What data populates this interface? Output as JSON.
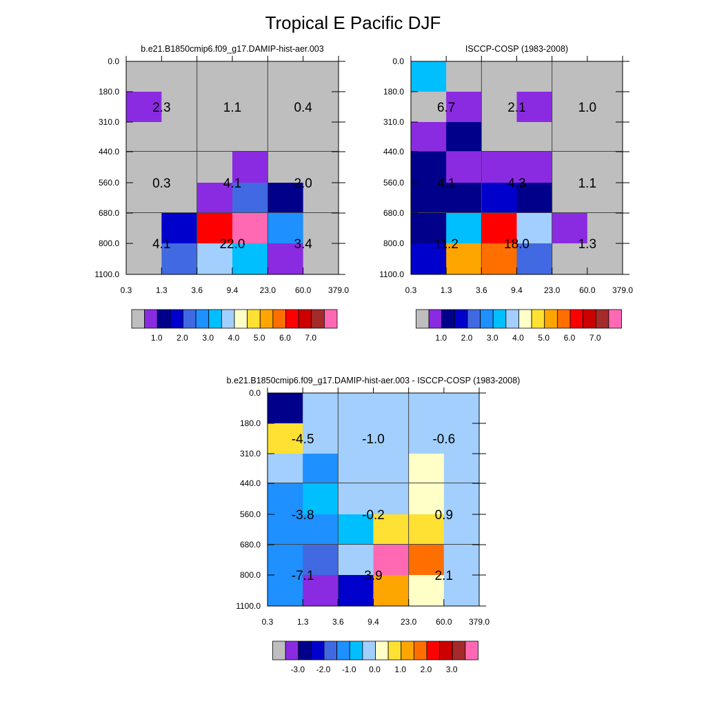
{
  "figure": {
    "title": "Tropical E Pacific DJF"
  },
  "chart_data": [
    {
      "type": "heatmap",
      "title": "b.e21.B1850cmip6.f09_g17.DAMIP-hist-aer.003",
      "x_ticks": [
        "0.3",
        "1.3",
        "3.6",
        "9.4",
        "23.0",
        "60.0",
        "379.0"
      ],
      "y_ticks": [
        "0.0",
        "180.0",
        "310.0",
        "440.0",
        "560.0",
        "680.0",
        "800.0",
        "1100.0"
      ],
      "cells": [
        [
          "gray",
          "gray",
          "gray",
          "gray",
          "gray",
          "gray"
        ],
        [
          "purple",
          "gray",
          "gray",
          "gray",
          "gray",
          "gray"
        ],
        [
          "gray",
          "gray",
          "gray",
          "gray",
          "gray",
          "gray"
        ],
        [
          "gray",
          "gray",
          "gray",
          "purple",
          "gray",
          "gray"
        ],
        [
          "gray",
          "gray",
          "purple",
          "royalblue",
          "navy",
          "gray"
        ],
        [
          "gray",
          "mediumblue",
          "red",
          "pink",
          "dodgerblue",
          "gray"
        ],
        [
          "gray",
          "royalblue",
          "lightblue",
          "deepskyblue",
          "purple",
          "gray"
        ]
      ],
      "box_values": [
        [
          "2.3",
          "1.1",
          "0.4"
        ],
        [
          "0.3",
          "4.1",
          "2.0"
        ],
        [
          "4.1",
          "22.0",
          "3.4"
        ]
      ],
      "colorbar": {
        "labels": [
          "1.0",
          "2.0",
          "3.0",
          "4.0",
          "5.0",
          "6.0",
          "7.0"
        ]
      }
    },
    {
      "type": "heatmap",
      "title": "ISCCP-COSP (1983-2008)",
      "x_ticks": [
        "0.3",
        "1.3",
        "3.6",
        "9.4",
        "23.0",
        "60.0",
        "379.0"
      ],
      "y_ticks": [
        "0.0",
        "180.0",
        "310.0",
        "440.0",
        "560.0",
        "680.0",
        "800.0",
        "1100.0"
      ],
      "cells": [
        [
          "deepskyblue",
          "gray",
          "gray",
          "gray",
          "gray",
          "gray"
        ],
        [
          "gray",
          "purple",
          "gray",
          "purple",
          "gray",
          "gray"
        ],
        [
          "purple",
          "navy",
          "gray",
          "gray",
          "gray",
          "gray"
        ],
        [
          "navy",
          "purple",
          "purple",
          "purple",
          "gray",
          "gray"
        ],
        [
          "navy",
          "navy",
          "mediumblue",
          "navy",
          "gray",
          "gray"
        ],
        [
          "navy",
          "deepskyblue",
          "red",
          "lightblue",
          "purple",
          "gray"
        ],
        [
          "mediumblue",
          "orange",
          "darkorange",
          "royalblue",
          "gray",
          "gray"
        ]
      ],
      "box_values": [
        [
          "6.7",
          "2.1",
          "1.0"
        ],
        [
          "4.1",
          "4.3",
          "1.1"
        ],
        [
          "11.2",
          "18.0",
          "1.3"
        ]
      ],
      "colorbar": {
        "labels": [
          "1.0",
          "2.0",
          "3.0",
          "4.0",
          "5.0",
          "6.0",
          "7.0"
        ]
      }
    },
    {
      "type": "heatmap",
      "title": "b.e21.B1850cmip6.f09_g17.DAMIP-hist-aer.003 - ISCCP-COSP (1983-2008)",
      "x_ticks": [
        "0.3",
        "1.3",
        "3.6",
        "9.4",
        "23.0",
        "60.0",
        "379.0"
      ],
      "y_ticks": [
        "0.0",
        "180.0",
        "310.0",
        "440.0",
        "560.0",
        "680.0",
        "800.0",
        "1100.0"
      ],
      "cells": [
        [
          "navy",
          "lightblue",
          "lightblue",
          "lightblue",
          "lightblue",
          "lightblue"
        ],
        [
          "gold",
          "lightblue",
          "lightblue",
          "lightblue",
          "lightblue",
          "lightblue"
        ],
        [
          "lightblue",
          "dodgerblue",
          "lightblue",
          "lightblue",
          "lightyellow",
          "lightblue"
        ],
        [
          "dodgerblue",
          "deepskyblue",
          "lightblue",
          "lightblue",
          "lightyellow",
          "lightblue"
        ],
        [
          "dodgerblue",
          "dodgerblue",
          "deepskyblue",
          "gold",
          "gold",
          "lightblue"
        ],
        [
          "dodgerblue",
          "royalblue",
          "lightblue",
          "pink",
          "darkorange",
          "lightblue"
        ],
        [
          "dodgerblue",
          "purple",
          "mediumblue",
          "orange",
          "lightyellow",
          "lightblue"
        ]
      ],
      "box_values": [
        [
          "-4.5",
          "-1.0",
          "-0.6"
        ],
        [
          "-3.8",
          "-0.2",
          "0.9"
        ],
        [
          "-7.1",
          "3.9",
          "2.1"
        ]
      ],
      "colorbar": {
        "labels": [
          "-3.0",
          "-2.0",
          "-1.0",
          "0.0",
          "1.0",
          "2.0",
          "3.0"
        ]
      }
    }
  ],
  "palette": {
    "gray": "#bebebe",
    "purple": "#8a2be2",
    "navy": "#00008b",
    "mediumblue": "#0000cd",
    "royalblue": "#4169e1",
    "dodgerblue": "#1e90ff",
    "deepskyblue": "#00bfff",
    "lightblue": "#a2cffe",
    "lightyellow": "#ffffc8",
    "gold": "#fee133",
    "orange": "#ffa500",
    "darkorange": "#ff6f00",
    "red": "#ff0000",
    "darkred": "#cd0000",
    "brown": "#a52a2a",
    "pink": "#ff69b4"
  },
  "colorbar_colors": [
    "gray",
    "purple",
    "navy",
    "mediumblue",
    "royalblue",
    "dodgerblue",
    "deepskyblue",
    "lightblue",
    "lightyellow",
    "gold",
    "orange",
    "darkorange",
    "red",
    "darkred",
    "brown",
    "pink"
  ]
}
